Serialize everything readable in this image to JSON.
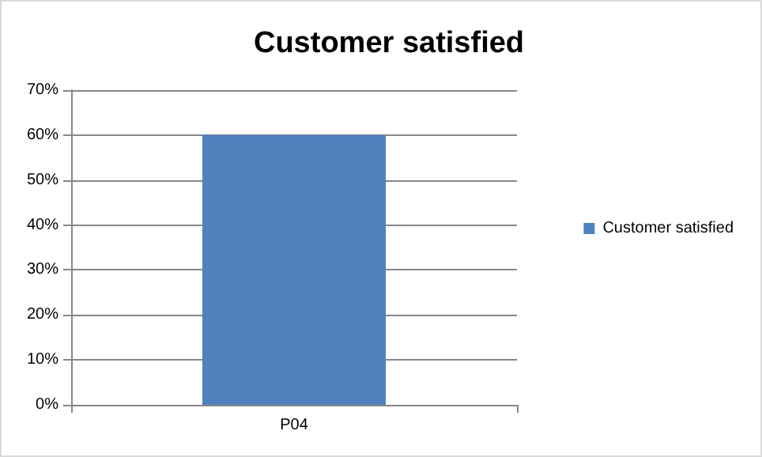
{
  "chart_data": {
    "type": "bar",
    "title": "Customer satisfied",
    "categories": [
      "P04"
    ],
    "series": [
      {
        "name": "Customer satisfied",
        "color": "#4f81bd",
        "values": [
          60
        ]
      }
    ],
    "ylim": [
      0,
      70
    ],
    "yticks": [
      {
        "value": 0,
        "label": "0%"
      },
      {
        "value": 10,
        "label": "10%"
      },
      {
        "value": 20,
        "label": "20%"
      },
      {
        "value": 30,
        "label": "30%"
      },
      {
        "value": 40,
        "label": "40%"
      },
      {
        "value": 50,
        "label": "50%"
      },
      {
        "value": 60,
        "label": "60%"
      },
      {
        "value": 70,
        "label": "70%"
      }
    ],
    "grid": "y",
    "legend": "right"
  }
}
